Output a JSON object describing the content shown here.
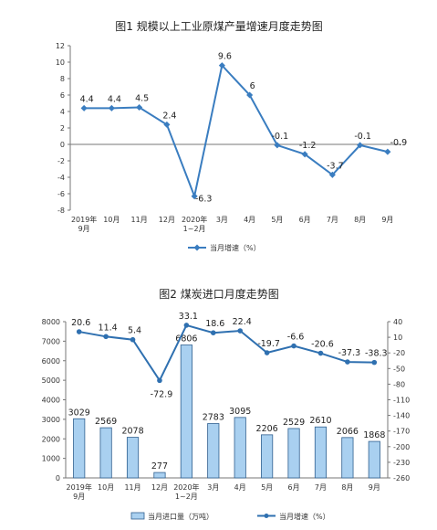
{
  "chart_data": [
    {
      "type": "line",
      "title": "图1  规模以上工业原煤产量增速月度走势图",
      "categories": [
        [
          "2019年",
          "9月"
        ],
        [
          "10月"
        ],
        [
          "11月"
        ],
        [
          "12月"
        ],
        [
          "2020年",
          "1~2月"
        ],
        [
          "3月"
        ],
        [
          "4月"
        ],
        [
          "5月"
        ],
        [
          "6月"
        ],
        [
          "7月"
        ],
        [
          "8月"
        ],
        [
          "9月"
        ]
      ],
      "series": [
        {
          "name": "当月增速（%）",
          "color": "#3a7dc0",
          "values": [
            4.4,
            4.4,
            4.5,
            2.4,
            -6.3,
            9.6,
            6.0,
            -0.1,
            -1.2,
            -3.7,
            -0.1,
            -0.9
          ]
        }
      ],
      "yticks": [
        12,
        10,
        8,
        6,
        4,
        2,
        0,
        -2,
        -4,
        -6,
        -8
      ],
      "ylim": [
        -8,
        12
      ],
      "legend_position": "bottom"
    },
    {
      "type": "bar+line",
      "title": "图2  煤炭进口月度走势图",
      "categories": [
        [
          "2019年",
          "9月"
        ],
        [
          "10月"
        ],
        [
          "11月"
        ],
        [
          "12月"
        ],
        [
          "2020年",
          "1~2月"
        ],
        [
          "3月"
        ],
        [
          "4月"
        ],
        [
          "5月"
        ],
        [
          "6月"
        ],
        [
          "7月"
        ],
        [
          "8月"
        ],
        [
          "9月"
        ]
      ],
      "bar_series": {
        "name": "当月进口量（万吨）",
        "color": "#a9d0f0",
        "edge": "#2f5f8f",
        "values": [
          3029,
          2569,
          2078,
          277,
          6806,
          2783,
          3095,
          2206,
          2529,
          2610,
          2066,
          1868
        ]
      },
      "line_series": {
        "name": "当月增速（%）",
        "color": "#2f70b0",
        "values": [
          20.6,
          11.4,
          5.4,
          -72.9,
          33.1,
          18.6,
          22.4,
          -19.7,
          -6.6,
          -20.6,
          -37.3,
          -38.3
        ]
      },
      "yticks_left": [
        8000,
        7000,
        6000,
        5000,
        4000,
        3000,
        2000,
        1000,
        0
      ],
      "ylim_left": [
        0,
        8000
      ],
      "yticks_right": [
        40,
        10,
        -20,
        -50,
        -80,
        -110,
        -140,
        -170,
        -200,
        -230,
        -260
      ],
      "ylim_right": [
        -260,
        40
      ],
      "legend_position": "bottom"
    }
  ]
}
